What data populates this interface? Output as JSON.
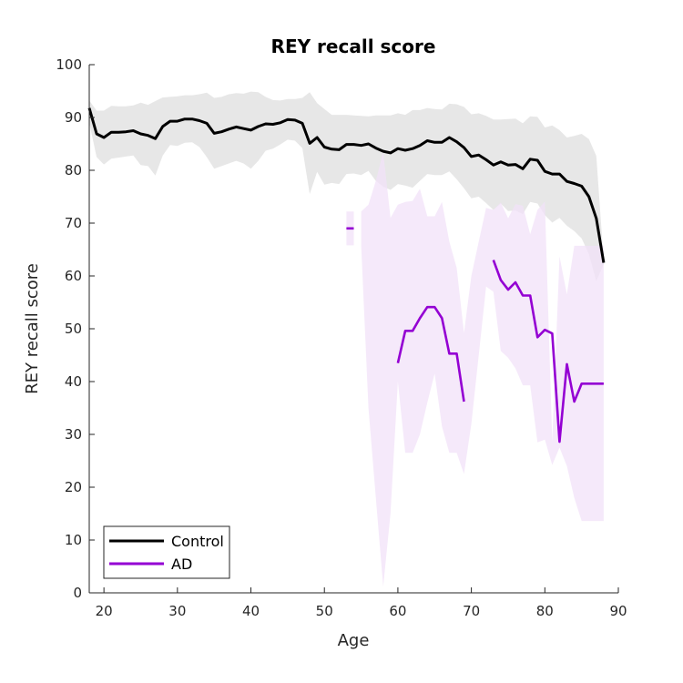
{
  "chart_data": {
    "type": "line",
    "title": "REY recall score",
    "xlabel": "Age",
    "ylabel": "REY recall score",
    "xlim": [
      18,
      90
    ],
    "ylim": [
      0,
      100
    ],
    "xticks": [
      20,
      30,
      40,
      50,
      60,
      70,
      80,
      90
    ],
    "yticks": [
      0,
      10,
      20,
      30,
      40,
      50,
      60,
      70,
      80,
      90,
      100
    ],
    "grid": false,
    "legend_position": "bottom-left",
    "series": [
      {
        "name": "Control",
        "color": "#000000",
        "band_color": "#e3e3e3",
        "x": [
          18,
          19,
          20,
          21,
          22,
          23,
          24,
          25,
          26,
          27,
          28,
          29,
          30,
          31,
          32,
          33,
          34,
          35,
          36,
          37,
          38,
          39,
          40,
          41,
          42,
          43,
          44,
          45,
          46,
          47,
          48,
          49,
          50,
          51,
          52,
          53,
          54,
          55,
          56,
          57,
          58,
          59,
          60,
          61,
          62,
          63,
          64,
          65,
          66,
          67,
          68,
          69,
          70,
          71,
          72,
          73,
          74,
          75,
          76,
          77,
          78,
          79,
          80,
          81,
          82,
          83,
          84,
          85,
          86,
          87,
          88
        ],
        "y": [
          91.8,
          86.9,
          86.2,
          87.2,
          87.2,
          87.3,
          87.5,
          86.9,
          86.6,
          86,
          88.3,
          89.3,
          89.3,
          89.7,
          89.7,
          89.4,
          88.9,
          87,
          87.3,
          87.8,
          88.2,
          87.9,
          87.6,
          88.3,
          88.8,
          88.7,
          89,
          89.6,
          89.5,
          88.9,
          85.1,
          86.2,
          84.4,
          84,
          83.9,
          84.9,
          84.9,
          84.7,
          85,
          84.2,
          83.6,
          83.3,
          84.1,
          83.8,
          84.1,
          84.7,
          85.6,
          85.3,
          85.3,
          86.2,
          85.4,
          84.3,
          82.6,
          82.9,
          82,
          81,
          81.6,
          81,
          81.1,
          80.3,
          82.1,
          81.9,
          79.8,
          79.3,
          79.3,
          77.9,
          77.5,
          77,
          75,
          70.9,
          62.5
        ],
        "lower": [
          89,
          82.5,
          81.1,
          82.2,
          82.4,
          82.6,
          82.8,
          81,
          80.8,
          79,
          82.8,
          84.8,
          84.6,
          85.2,
          85.3,
          84.4,
          82.5,
          80.3,
          80.8,
          81.3,
          81.8,
          81.3,
          80.3,
          81.8,
          83.7,
          84.1,
          84.9,
          85.8,
          85.6,
          84.2,
          75.5,
          79.7,
          77.3,
          77.6,
          77.4,
          79.3,
          79.4,
          79.1,
          79.9,
          78,
          76.9,
          76.3,
          77.4,
          77.1,
          76.7,
          78,
          79.3,
          79.1,
          79.1,
          79.8,
          78.3,
          76.6,
          74.7,
          75,
          73.8,
          72.5,
          73.7,
          72.3,
          72.4,
          71.7,
          74,
          73.7,
          71.5,
          70.1,
          71,
          69.5,
          68.5,
          67.1,
          64.1,
          59,
          62.2
        ],
        "upper": [
          93.2,
          91.3,
          91.3,
          92.2,
          92.1,
          92.1,
          92.3,
          92.8,
          92.4,
          93.1,
          93.8,
          93.9,
          94,
          94.2,
          94.2,
          94.4,
          94.7,
          93.7,
          93.9,
          94.4,
          94.6,
          94.5,
          94.9,
          94.8,
          93.9,
          93.3,
          93.2,
          93.5,
          93.5,
          93.7,
          94.8,
          92.7,
          91.6,
          90.5,
          90.5,
          90.5,
          90.4,
          90.3,
          90.2,
          90.4,
          90.4,
          90.4,
          90.8,
          90.5,
          91.4,
          91.4,
          91.8,
          91.6,
          91.5,
          92.6,
          92.5,
          92,
          90.6,
          90.8,
          90.3,
          89.6,
          89.6,
          89.7,
          89.8,
          88.9,
          90.2,
          90.1,
          88.1,
          88.5,
          87.6,
          86.2,
          86.5,
          86.9,
          85.9,
          82.7,
          62.9
        ]
      },
      {
        "name": "AD",
        "color": "#9400d3",
        "band_color": "#f2e2f8",
        "segments": [
          {
            "x": [
              53,
              54
            ],
            "y": [
              69,
              69
            ],
            "lower": [
              65.8,
              65.8
            ],
            "upper": [
              72.2,
              72.2
            ]
          },
          {
            "x": [
              55,
              56,
              57,
              58,
              59,
              60,
              61,
              62,
              63,
              64,
              65,
              66,
              67,
              68,
              69,
              70,
              71,
              72,
              73,
              74,
              75,
              76,
              77,
              78,
              79,
              80,
              81,
              82,
              83,
              84,
              85,
              86,
              87,
              88
            ],
            "y": [
              null,
              null,
              null,
              null,
              null,
              43.5,
              49.6,
              49.6,
              52,
              54.1,
              54.1,
              52,
              45.3,
              45.3,
              36.2,
              null,
              null,
              null,
              63,
              59.2,
              57.4,
              58.8,
              56.3,
              56.3,
              48.4,
              49.8,
              49.1,
              28.6,
              43.3,
              36.2,
              39.6,
              39.6,
              39.6,
              39.6
            ],
            "lower": [
              65.8,
              35,
              18,
              1.2,
              15,
              40,
              26.5,
              26.5,
              30,
              36,
              41.5,
              31.5,
              26.5,
              26.5,
              22.5,
              32,
              45,
              58,
              57,
              45.8,
              44.5,
              42.5,
              39.3,
              39.3,
              28.5,
              29,
              24.2,
              27.5,
              24,
              18,
              13.6,
              13.6,
              13.6,
              13.6
            ],
            "upper": [
              72.2,
              73.5,
              78,
              83.5,
              71,
              73.5,
              74,
              74.2,
              76.5,
              71.3,
              71.3,
              74,
              66.5,
              61.5,
              49.2,
              60,
              66.5,
              72.9,
              72.5,
              73.9,
              70.9,
              73.6,
              73.3,
              67.9,
              72.5,
              74.1,
              28.7,
              63.7,
              56.5,
              65.7,
              65.7,
              65.7,
              65.7,
              65.7
            ]
          }
        ]
      }
    ]
  }
}
